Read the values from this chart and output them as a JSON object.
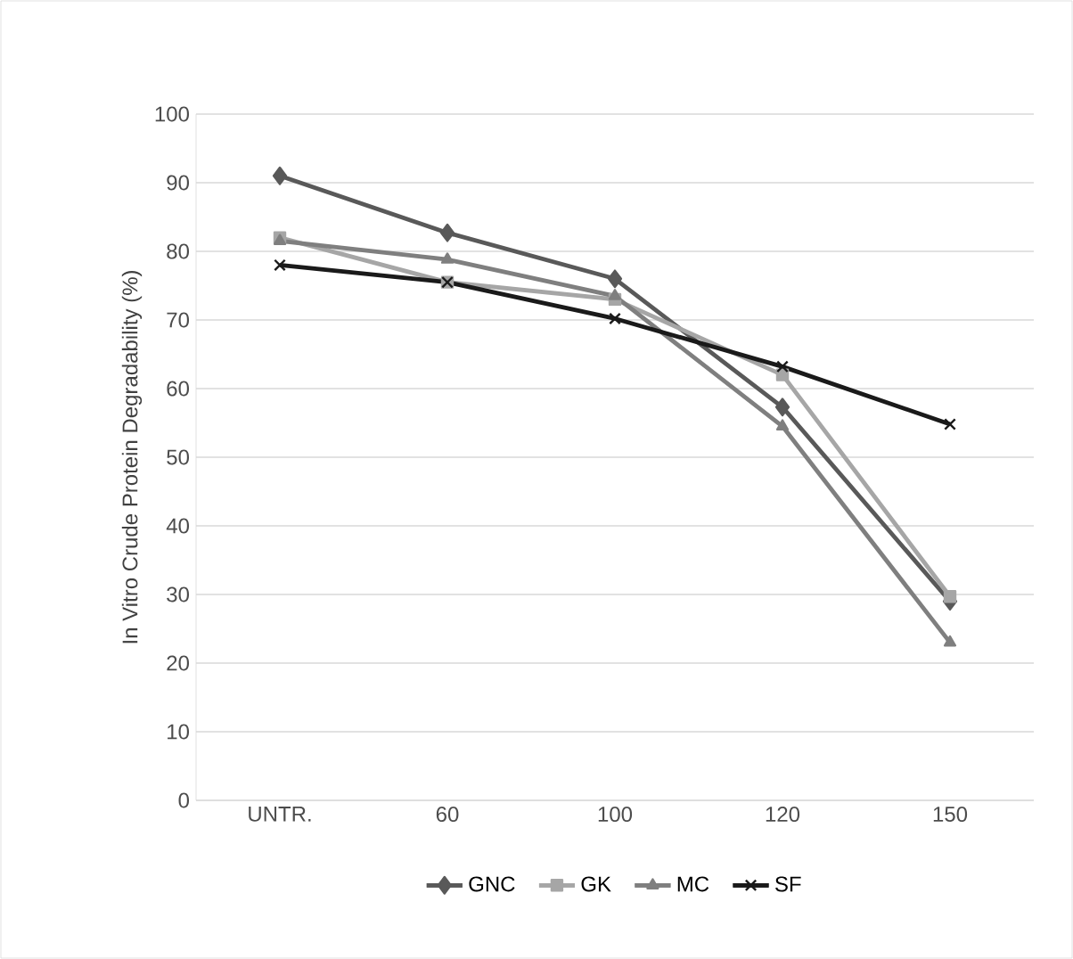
{
  "chart_data": {
    "type": "line",
    "ylabel": "In Vitro Crude Protein Degradability (%)",
    "categories": [
      "UNTR.",
      "60",
      "100",
      "120",
      "150"
    ],
    "ylim": [
      0,
      100
    ],
    "yticks": [
      0,
      10,
      20,
      30,
      40,
      50,
      60,
      70,
      80,
      90,
      100
    ],
    "grid": "y",
    "legend": "bottom",
    "line_style": "solid",
    "series": [
      {
        "name": "GNC",
        "color": "#595959",
        "marker": "diamond",
        "values": [
          91,
          82.7,
          76,
          57.3,
          29
        ]
      },
      {
        "name": "GK",
        "color": "#a6a6a6",
        "marker": "square",
        "values": [
          82,
          75.5,
          73,
          62,
          29.7
        ]
      },
      {
        "name": "MC",
        "color": "#7f7f7f",
        "marker": "triangle",
        "values": [
          81.5,
          78.8,
          73.5,
          54.5,
          23
        ]
      },
      {
        "name": "SF",
        "color": "#1a1a1a",
        "marker": "cross",
        "values": [
          78,
          75.5,
          70.2,
          63.2,
          54.8
        ]
      }
    ]
  }
}
